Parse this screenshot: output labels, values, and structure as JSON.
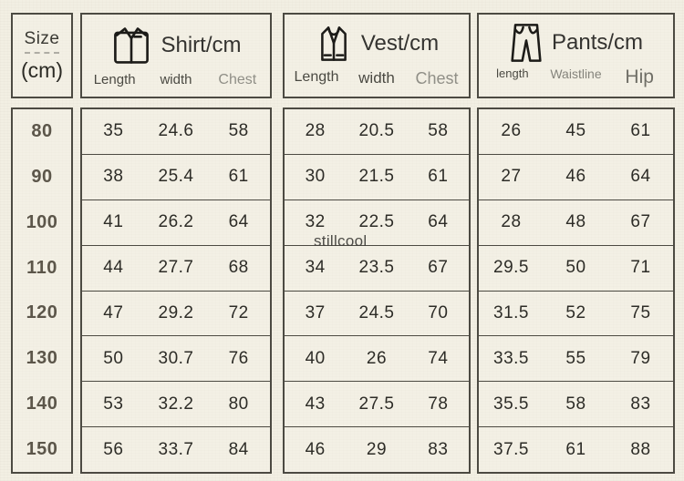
{
  "size_column": {
    "title_line1": "Size",
    "title_line2": "(cm)",
    "sizes": [
      "80",
      "90",
      "100",
      "110",
      "120",
      "130",
      "140",
      "150"
    ]
  },
  "sections": [
    {
      "id": "shirt",
      "title": "Shirt/cm",
      "icon": "shirt-icon",
      "columns": [
        "Length",
        "width",
        "Chest"
      ],
      "rows": [
        [
          "35",
          "24.6",
          "58"
        ],
        [
          "38",
          "25.4",
          "61"
        ],
        [
          "41",
          "26.2",
          "64"
        ],
        [
          "44",
          "27.7",
          "68"
        ],
        [
          "47",
          "29.2",
          "72"
        ],
        [
          "50",
          "30.7",
          "76"
        ],
        [
          "53",
          "32.2",
          "80"
        ],
        [
          "56",
          "33.7",
          "84"
        ]
      ]
    },
    {
      "id": "vest",
      "title": "Vest/cm",
      "icon": "vest-icon",
      "columns": [
        "Length",
        "width",
        "Chest"
      ],
      "rows": [
        [
          "28",
          "20.5",
          "58"
        ],
        [
          "30",
          "21.5",
          "61"
        ],
        [
          "32",
          "22.5",
          "64"
        ],
        [
          "34",
          "23.5",
          "67"
        ],
        [
          "37",
          "24.5",
          "70"
        ],
        [
          "40",
          "26",
          "74"
        ],
        [
          "43",
          "27.5",
          "78"
        ],
        [
          "46",
          "29",
          "83"
        ]
      ]
    },
    {
      "id": "pants",
      "title": "Pants/cm",
      "icon": "pants-icon",
      "columns": [
        "length",
        "Waistline",
        "Hip"
      ],
      "rows": [
        [
          "26",
          "45",
          "61"
        ],
        [
          "27",
          "46",
          "64"
        ],
        [
          "28",
          "48",
          "67"
        ],
        [
          "29.5",
          "50",
          "71"
        ],
        [
          "31.5",
          "52",
          "75"
        ],
        [
          "33.5",
          "55",
          "79"
        ],
        [
          "35.5",
          "58",
          "83"
        ],
        [
          "37.5",
          "61",
          "88"
        ]
      ]
    }
  ],
  "watermark": "stillcool",
  "colors": {
    "background": "#f2efe3",
    "border": "#4c4a42",
    "data_text": "#2d2c27",
    "size_text": "#5c564a",
    "muted_header": "#908f87"
  },
  "chart_data": {
    "type": "table",
    "columns": [
      "Size (cm)",
      "Shirt Length",
      "Shirt width",
      "Shirt Chest",
      "Vest Length",
      "Vest width",
      "Vest Chest",
      "Pants length",
      "Pants Waistline",
      "Pants Hip"
    ],
    "rows": [
      [
        80,
        35,
        24.6,
        58,
        28,
        20.5,
        58,
        26,
        45,
        61
      ],
      [
        90,
        38,
        25.4,
        61,
        30,
        21.5,
        61,
        27,
        46,
        64
      ],
      [
        100,
        41,
        26.2,
        64,
        32,
        22.5,
        64,
        28,
        48,
        67
      ],
      [
        110,
        44,
        27.7,
        68,
        34,
        23.5,
        67,
        29.5,
        50,
        71
      ],
      [
        120,
        47,
        29.2,
        72,
        37,
        24.5,
        70,
        31.5,
        52,
        75
      ],
      [
        130,
        50,
        30.7,
        76,
        40,
        26,
        74,
        33.5,
        55,
        79
      ],
      [
        140,
        53,
        32.2,
        80,
        43,
        27.5,
        78,
        35.5,
        58,
        83
      ],
      [
        150,
        56,
        33.7,
        84,
        46,
        29,
        83,
        37.5,
        61,
        88
      ]
    ]
  }
}
